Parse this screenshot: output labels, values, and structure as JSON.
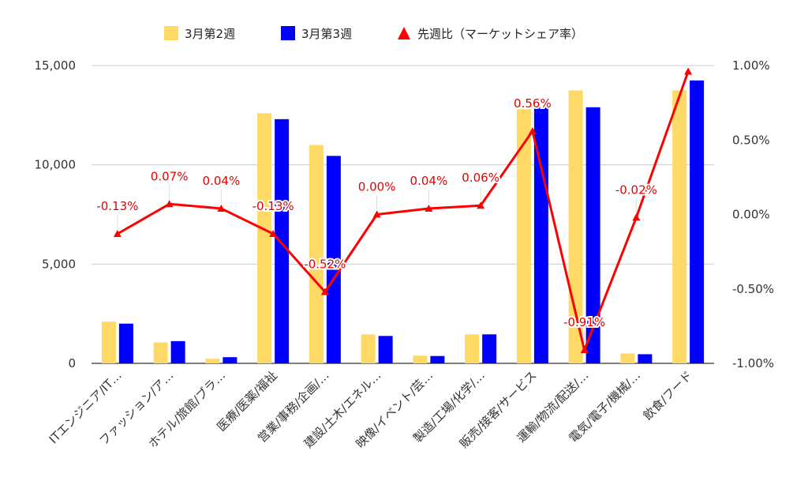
{
  "chart_data": {
    "type": "bar",
    "categories": [
      "ITエンジニア/IT…",
      "ファッション/ア…",
      "ホテル/旅館/ブラ…",
      "医療/医薬/福祉",
      "営業/事務/企画/…",
      "建設/土木/エネル…",
      "映像/イベント/芸…",
      "製造/工場/化学/…",
      "販売/接客/サービス",
      "運輸/物流/配送/…",
      "電気/電子/機械/…",
      "飲食/フード"
    ],
    "series": [
      {
        "name": "3月第2週",
        "type": "bar",
        "axis": "left",
        "color": "#ffd966",
        "values": [
          2100,
          1050,
          230,
          12600,
          11000,
          1460,
          390,
          1460,
          12800,
          13750,
          500,
          13750
        ]
      },
      {
        "name": "3月第3週",
        "type": "bar",
        "axis": "left",
        "color": "#0000ff",
        "values": [
          2000,
          1120,
          310,
          12300,
          10450,
          1380,
          370,
          1460,
          12900,
          12900,
          460,
          14250
        ]
      },
      {
        "name": "先週比（マーケットシェア率）",
        "type": "line",
        "axis": "right",
        "color": "#ff0000",
        "values": [
          -0.13,
          0.07,
          0.04,
          -0.13,
          -0.52,
          0.0,
          0.04,
          0.06,
          0.56,
          -0.91,
          -0.02,
          0.96
        ],
        "labels": [
          "-0.13%",
          "0.07%",
          "0.04%",
          "-0.13%",
          "-0.52%",
          "0.00%",
          "0.04%",
          "0.06%",
          "0.56%",
          "-0.91%",
          "-0.02%",
          ""
        ]
      }
    ],
    "y_left": {
      "min": 0,
      "max": 15000,
      "ticks": [
        0,
        5000,
        10000,
        15000
      ],
      "tick_labels": [
        "0",
        "5,000",
        "10,000",
        "15,000"
      ]
    },
    "y_right": {
      "min": -1.0,
      "max": 1.0,
      "ticks": [
        -1.0,
        -0.5,
        0.0,
        0.5,
        1.0
      ],
      "tick_labels": [
        "-1.00%",
        "-0.50%",
        "0.00%",
        "0.50%",
        "1.00%"
      ]
    },
    "legend_position": "top",
    "grid": true
  }
}
